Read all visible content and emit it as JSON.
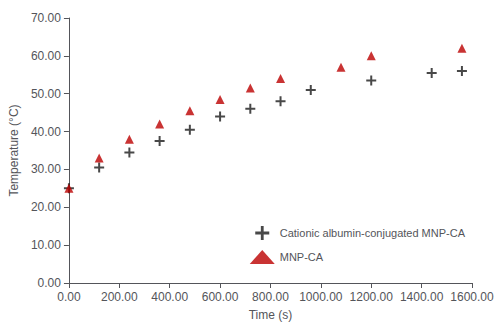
{
  "chart_data": {
    "type": "scatter",
    "xlabel": "Time (s)",
    "ylabel": "Temperature (°C)",
    "xlim": [
      0,
      1600
    ],
    "ylim": [
      0,
      70
    ],
    "xticks": [
      {
        "value": 0,
        "label": "0.00"
      },
      {
        "value": 200,
        "label": "200.00"
      },
      {
        "value": 400,
        "label": "400.00"
      },
      {
        "value": 600,
        "label": "600.00"
      },
      {
        "value": 800,
        "label": "800.00"
      },
      {
        "value": 1000,
        "label": "1000.00"
      },
      {
        "value": 1200,
        "label": "1200.00"
      },
      {
        "value": 1400,
        "label": "1400.00"
      },
      {
        "value": 1600,
        "label": "1600.00"
      }
    ],
    "yticks": [
      {
        "value": 0,
        "label": "0.00"
      },
      {
        "value": 10,
        "label": "10.00"
      },
      {
        "value": 20,
        "label": "20.00"
      },
      {
        "value": 30,
        "label": "30.00"
      },
      {
        "value": 40,
        "label": "40.00"
      },
      {
        "value": 50,
        "label": "50.00"
      },
      {
        "value": 60,
        "label": "60.00"
      },
      {
        "value": 70,
        "label": "70.00"
      }
    ],
    "grid": false,
    "legend": "lower right",
    "series": [
      {
        "name": "Cationic albumin-conjugated MNP-CA",
        "color": "#1a1a1a",
        "marker": "plus",
        "x": [
          0,
          120,
          240,
          360,
          480,
          600,
          720,
          840,
          960,
          1200,
          1440,
          1560
        ],
        "values": [
          25,
          30.5,
          34.5,
          37.5,
          40.5,
          44,
          46,
          48,
          51,
          53.5,
          55.5,
          56
        ]
      },
      {
        "name": "MNP-CA",
        "color": "#bb0000",
        "marker": "triangle",
        "x": [
          0,
          120,
          240,
          360,
          480,
          600,
          720,
          840,
          1080,
          1200,
          1560
        ],
        "values": [
          25,
          33,
          38,
          42,
          45.5,
          48.5,
          51.5,
          54,
          57,
          60,
          62
        ]
      }
    ]
  }
}
